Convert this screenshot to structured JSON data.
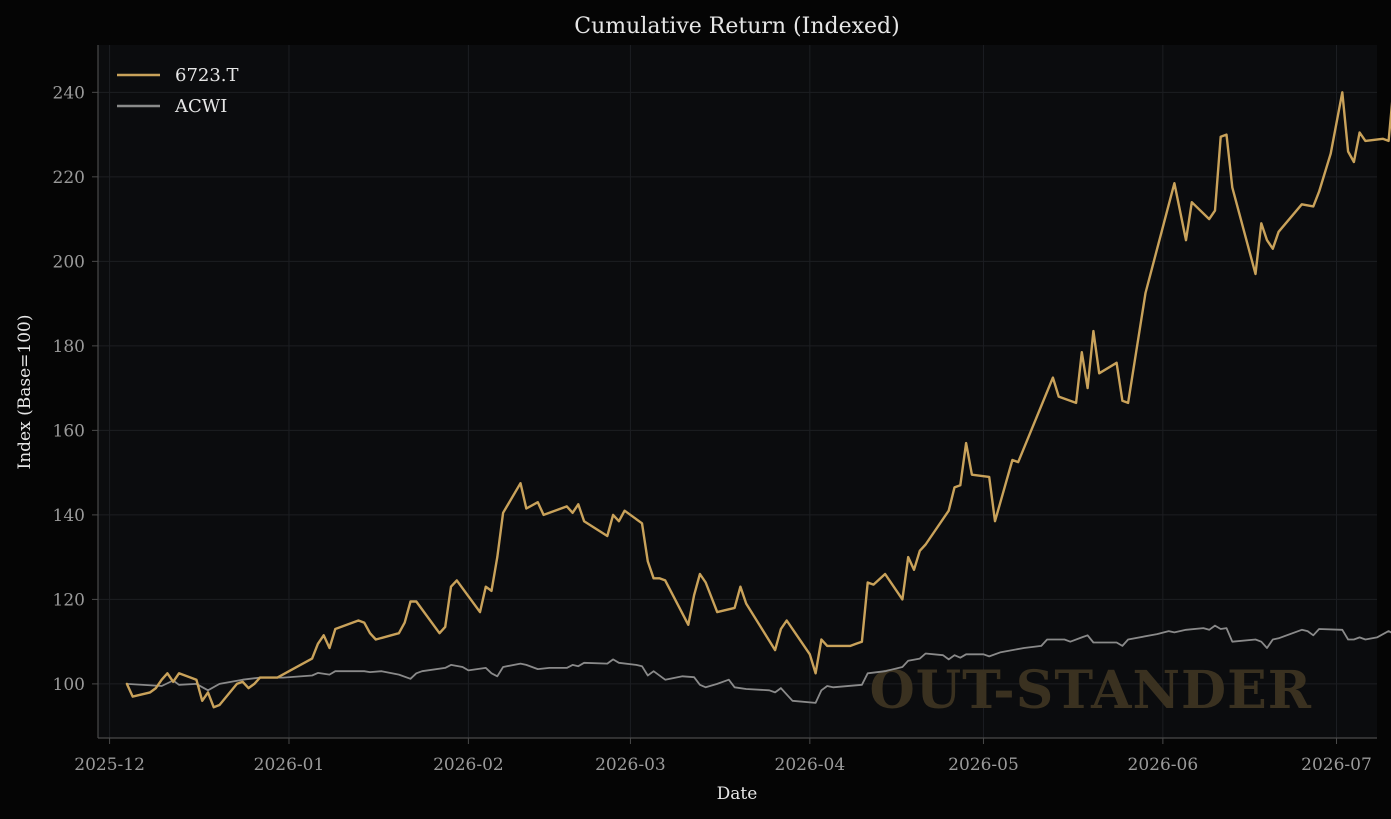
{
  "chart_data": {
    "type": "line",
    "title": "Cumulative Return (Indexed)",
    "xlabel": "Date",
    "ylabel": "Index (Base=100)",
    "x_ticks": [
      "2025-12",
      "2026-01",
      "2026-02",
      "2026-03",
      "2026-04",
      "2026-05",
      "2026-06",
      "2026-07"
    ],
    "y_ticks": [
      100,
      120,
      140,
      160,
      180,
      200,
      220,
      240
    ],
    "xlim": [
      "2025-11-29",
      "2026-07-08"
    ],
    "ylim": [
      87.2,
      251.2
    ],
    "grid": true,
    "legend_position": "top-left",
    "watermark": "OUT-STANDER",
    "colors": {
      "background": "#050505",
      "plot_area": "#0b0c0e",
      "spine": "#4a4a4a",
      "grid": "#1c1e22",
      "watermark": "#3a3120"
    },
    "series": [
      {
        "name": "6723.T",
        "color": "#c9a25a",
        "points": [
          [
            "2025-12-04",
            100
          ],
          [
            "2025-12-05",
            97
          ],
          [
            "2025-12-08",
            98
          ],
          [
            "2025-12-09",
            99
          ],
          [
            "2025-12-10",
            101
          ],
          [
            "2025-12-11",
            102.5
          ],
          [
            "2025-12-12",
            100.5
          ],
          [
            "2025-12-13",
            102.5
          ],
          [
            "2025-12-16",
            101
          ],
          [
            "2025-12-17",
            96
          ],
          [
            "2025-12-18",
            98
          ],
          [
            "2025-12-19",
            94.5
          ],
          [
            "2025-12-20",
            95
          ],
          [
            "2025-12-23",
            100
          ],
          [
            "2025-12-24",
            100.5
          ],
          [
            "2025-12-25",
            99
          ],
          [
            "2025-12-26",
            100
          ],
          [
            "2025-12-27",
            101.5
          ],
          [
            "2025-12-30",
            101.5
          ],
          [
            "2026-01-01",
            103
          ],
          [
            "2026-01-05",
            106
          ],
          [
            "2026-01-06",
            109.5
          ],
          [
            "2026-01-07",
            111.5
          ],
          [
            "2026-01-08",
            108.5
          ],
          [
            "2026-01-09",
            113
          ],
          [
            "2026-01-13",
            115
          ],
          [
            "2026-01-14",
            114.5
          ],
          [
            "2026-01-15",
            112
          ],
          [
            "2026-01-16",
            110.5
          ],
          [
            "2026-01-20",
            112
          ],
          [
            "2026-01-21",
            114.5
          ],
          [
            "2026-01-22",
            119.5
          ],
          [
            "2026-01-23",
            119.5
          ],
          [
            "2026-01-27",
            112
          ],
          [
            "2026-01-28",
            113.5
          ],
          [
            "2026-01-29",
            123
          ],
          [
            "2026-01-30",
            124.5
          ],
          [
            "2026-02-03",
            117
          ],
          [
            "2026-02-04",
            123
          ],
          [
            "2026-02-05",
            122
          ],
          [
            "2026-02-06",
            130
          ],
          [
            "2026-02-07",
            140.5
          ],
          [
            "2026-02-10",
            147.5
          ],
          [
            "2026-02-11",
            141.5
          ],
          [
            "2026-02-13",
            143
          ],
          [
            "2026-02-14",
            140
          ],
          [
            "2026-02-18",
            142
          ],
          [
            "2026-02-19",
            140.5
          ],
          [
            "2026-02-20",
            142.5
          ],
          [
            "2026-02-21",
            138.5
          ],
          [
            "2026-02-25",
            135
          ],
          [
            "2026-02-26",
            140
          ],
          [
            "2026-02-27",
            138.5
          ],
          [
            "2026-02-28",
            141
          ],
          [
            "2026-03-03",
            138
          ],
          [
            "2026-03-04",
            129
          ],
          [
            "2026-03-05",
            125
          ],
          [
            "2026-03-06",
            125
          ],
          [
            "2026-03-07",
            124.5
          ],
          [
            "2026-03-11",
            114
          ],
          [
            "2026-03-12",
            121
          ],
          [
            "2026-03-13",
            126
          ],
          [
            "2026-03-14",
            124
          ],
          [
            "2026-03-16",
            117
          ],
          [
            "2026-03-19",
            118
          ],
          [
            "2026-03-20",
            123
          ],
          [
            "2026-03-21",
            119
          ],
          [
            "2026-03-26",
            108
          ],
          [
            "2026-03-27",
            113
          ],
          [
            "2026-03-28",
            115
          ],
          [
            "2026-04-01",
            107
          ],
          [
            "2026-04-02",
            102.5
          ],
          [
            "2026-04-03",
            110.5
          ],
          [
            "2026-04-04",
            109
          ],
          [
            "2026-04-08",
            109
          ],
          [
            "2026-04-09",
            109.5
          ],
          [
            "2026-04-10",
            110
          ],
          [
            "2026-04-11",
            124
          ],
          [
            "2026-04-12",
            123.5
          ],
          [
            "2026-04-14",
            126
          ],
          [
            "2026-04-17",
            120
          ],
          [
            "2026-04-18",
            130
          ],
          [
            "2026-04-19",
            127
          ],
          [
            "2026-04-20",
            131.5
          ],
          [
            "2026-04-21",
            133
          ],
          [
            "2026-04-25",
            141
          ],
          [
            "2026-04-26",
            146.5
          ],
          [
            "2026-04-27",
            147
          ],
          [
            "2026-04-28",
            157
          ],
          [
            "2026-04-29",
            149.5
          ],
          [
            "2026-05-02",
            149
          ],
          [
            "2026-05-03",
            138.5
          ],
          [
            "2026-05-06",
            153
          ],
          [
            "2026-05-07",
            152.5
          ],
          [
            "2026-05-13",
            172.5
          ],
          [
            "2026-05-14",
            168
          ],
          [
            "2026-05-17",
            166.5
          ],
          [
            "2026-05-18",
            178.5
          ],
          [
            "2026-05-19",
            170
          ],
          [
            "2026-05-20",
            183.5
          ],
          [
            "2026-05-21",
            173.5
          ],
          [
            "2026-05-24",
            176
          ],
          [
            "2026-05-25",
            167
          ],
          [
            "2026-05-26",
            166.5
          ],
          [
            "2026-05-29",
            192.5
          ],
          [
            "2026-06-03",
            218.5
          ],
          [
            "2026-06-05",
            205
          ],
          [
            "2026-06-06",
            214
          ],
          [
            "2026-06-09",
            210
          ],
          [
            "2026-06-10",
            212
          ],
          [
            "2026-06-11",
            229.5
          ],
          [
            "2026-06-12",
            230
          ],
          [
            "2026-06-13",
            217.5
          ],
          [
            "2026-06-17",
            197
          ],
          [
            "2026-06-18",
            209
          ],
          [
            "2026-06-19",
            205
          ],
          [
            "2026-06-20",
            203
          ],
          [
            "2026-06-21",
            207
          ],
          [
            "2026-06-25",
            213.5
          ],
          [
            "2026-06-27",
            213
          ],
          [
            "2026-06-28",
            216.5
          ],
          [
            "2026-06-30",
            225.5
          ],
          [
            "2026-07-02",
            240
          ],
          [
            "2026-07-03",
            226
          ],
          [
            "2026-07-04",
            223.5
          ],
          [
            "2026-07-05",
            230.5
          ],
          [
            "2026-07-06",
            228.5
          ],
          [
            "2026-07-09",
            229
          ],
          [
            "2026-07-10",
            228.5
          ],
          [
            "2026-07-11",
            243.5
          ],
          [
            "2026-07-12",
            230
          ]
        ]
      },
      {
        "name": "ACWI",
        "color": "#8a8a8a",
        "points": [
          [
            "2025-12-04",
            100
          ],
          [
            "2025-12-10",
            99.5
          ],
          [
            "2025-12-12",
            100.8
          ],
          [
            "2025-12-13",
            99.8
          ],
          [
            "2025-12-16",
            100
          ],
          [
            "2025-12-18",
            98.5
          ],
          [
            "2025-12-20",
            100
          ],
          [
            "2025-12-24",
            101
          ],
          [
            "2025-12-27",
            101.5
          ],
          [
            "2025-12-31",
            101.5
          ],
          [
            "2026-01-05",
            102
          ],
          [
            "2026-01-06",
            102.6
          ],
          [
            "2026-01-08",
            102.2
          ],
          [
            "2026-01-09",
            103
          ],
          [
            "2026-01-14",
            103
          ],
          [
            "2026-01-15",
            102.8
          ],
          [
            "2026-01-17",
            103
          ],
          [
            "2026-01-20",
            102.2
          ],
          [
            "2026-01-22",
            101.2
          ],
          [
            "2026-01-23",
            102.5
          ],
          [
            "2026-01-24",
            103
          ],
          [
            "2026-01-28",
            103.8
          ],
          [
            "2026-01-29",
            104.5
          ],
          [
            "2026-01-31",
            104
          ],
          [
            "2026-02-01",
            103.2
          ],
          [
            "2026-02-04",
            103.8
          ],
          [
            "2026-02-05",
            102.5
          ],
          [
            "2026-02-06",
            101.8
          ],
          [
            "2026-02-07",
            104
          ],
          [
            "2026-02-10",
            104.8
          ],
          [
            "2026-02-11",
            104.5
          ],
          [
            "2026-02-13",
            103.5
          ],
          [
            "2026-02-15",
            103.8
          ],
          [
            "2026-02-18",
            103.8
          ],
          [
            "2026-02-19",
            104.5
          ],
          [
            "2026-02-20",
            104.2
          ],
          [
            "2026-02-21",
            105
          ],
          [
            "2026-02-25",
            104.8
          ],
          [
            "2026-02-26",
            105.8
          ],
          [
            "2026-02-27",
            105
          ],
          [
            "2026-03-02",
            104.5
          ],
          [
            "2026-03-03",
            104.2
          ],
          [
            "2026-03-04",
            102
          ],
          [
            "2026-03-05",
            103
          ],
          [
            "2026-03-07",
            101
          ],
          [
            "2026-03-10",
            101.8
          ],
          [
            "2026-03-12",
            101.6
          ],
          [
            "2026-03-13",
            99.8
          ],
          [
            "2026-03-14",
            99.2
          ],
          [
            "2026-03-16",
            100
          ],
          [
            "2026-03-18",
            101
          ],
          [
            "2026-03-19",
            99.2
          ],
          [
            "2026-03-21",
            98.8
          ],
          [
            "2026-03-25",
            98.5
          ],
          [
            "2026-03-26",
            98
          ],
          [
            "2026-03-27",
            99
          ],
          [
            "2026-03-29",
            96
          ],
          [
            "2026-04-02",
            95.5
          ],
          [
            "2026-04-03",
            98.5
          ],
          [
            "2026-04-04",
            99.5
          ],
          [
            "2026-04-05",
            99.2
          ],
          [
            "2026-04-10",
            99.8
          ],
          [
            "2026-04-11",
            102.5
          ],
          [
            "2026-04-14",
            103
          ],
          [
            "2026-04-17",
            104
          ],
          [
            "2026-04-18",
            105.5
          ],
          [
            "2026-04-20",
            106
          ],
          [
            "2026-04-21",
            107.2
          ],
          [
            "2026-04-24",
            106.8
          ],
          [
            "2026-04-25",
            105.8
          ],
          [
            "2026-04-26",
            106.8
          ],
          [
            "2026-04-27",
            106.2
          ],
          [
            "2026-04-28",
            107
          ],
          [
            "2026-05-01",
            107
          ],
          [
            "2026-05-02",
            106.5
          ],
          [
            "2026-05-04",
            107.5
          ],
          [
            "2026-05-08",
            108.5
          ],
          [
            "2026-05-11",
            109
          ],
          [
            "2026-05-12",
            110.5
          ],
          [
            "2026-05-15",
            110.5
          ],
          [
            "2026-05-16",
            110
          ],
          [
            "2026-05-18",
            111
          ],
          [
            "2026-05-19",
            111.5
          ],
          [
            "2026-05-20",
            109.8
          ],
          [
            "2026-05-24",
            109.8
          ],
          [
            "2026-05-25",
            109
          ],
          [
            "2026-05-26",
            110.5
          ],
          [
            "2026-05-31",
            111.8
          ],
          [
            "2026-06-02",
            112.5
          ],
          [
            "2026-06-03",
            112.2
          ],
          [
            "2026-06-05",
            112.8
          ],
          [
            "2026-06-08",
            113.2
          ],
          [
            "2026-06-09",
            112.8
          ],
          [
            "2026-06-10",
            113.8
          ],
          [
            "2026-06-11",
            113
          ],
          [
            "2026-06-12",
            113.2
          ],
          [
            "2026-06-13",
            110
          ],
          [
            "2026-06-17",
            110.5
          ],
          [
            "2026-06-18",
            110
          ],
          [
            "2026-06-19",
            108.5
          ],
          [
            "2026-06-20",
            110.5
          ],
          [
            "2026-06-21",
            110.8
          ],
          [
            "2026-06-25",
            112.8
          ],
          [
            "2026-06-26",
            112.5
          ],
          [
            "2026-06-27",
            111.5
          ],
          [
            "2026-06-28",
            113
          ],
          [
            "2026-07-02",
            112.8
          ],
          [
            "2026-07-03",
            110.5
          ],
          [
            "2026-07-04",
            110.5
          ],
          [
            "2026-07-05",
            111
          ],
          [
            "2026-07-06",
            110.5
          ],
          [
            "2026-07-08",
            111
          ],
          [
            "2026-07-10",
            112.5
          ],
          [
            "2026-07-11",
            111.8
          ],
          [
            "2026-07-12",
            111.8
          ]
        ]
      }
    ]
  }
}
